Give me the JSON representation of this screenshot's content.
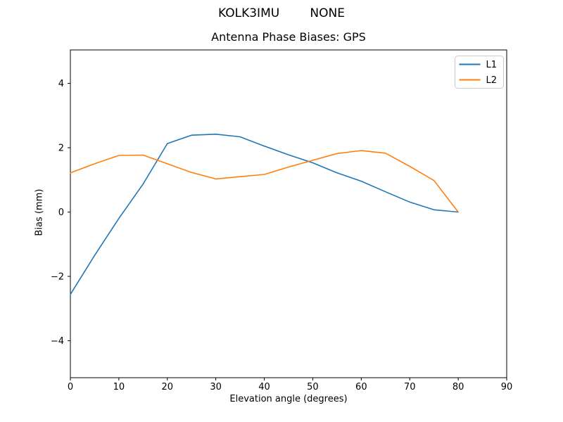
{
  "suptitle": "KOLK3IMU        NONE",
  "chart_data": {
    "type": "line",
    "title": "Antenna Phase Biases: GPS",
    "suptitle": "KOLK3IMU        NONE",
    "xlabel": "Elevation angle (degrees)",
    "ylabel": "Bias (mm)",
    "xlim": [
      0,
      90
    ],
    "ylim": [
      -5.15,
      5.04
    ],
    "grid": false,
    "xticks": [
      0,
      10,
      20,
      30,
      40,
      50,
      60,
      70,
      80,
      90
    ],
    "xtick_labels": [
      "0",
      "10",
      "20",
      "30",
      "40",
      "50",
      "60",
      "70",
      "80",
      "90"
    ],
    "yticks": [
      -4,
      -2,
      0,
      2,
      4
    ],
    "ytick_labels": [
      "−4",
      "−2",
      "0",
      "2",
      "4"
    ],
    "x": [
      0,
      5,
      10,
      15,
      20,
      25,
      30,
      35,
      40,
      45,
      50,
      55,
      60,
      65,
      70,
      75,
      80
    ],
    "series": [
      {
        "name": "L1",
        "color": "#1f77b4",
        "values": [
          -2.56,
          -1.35,
          -0.2,
          0.87,
          2.13,
          2.39,
          2.42,
          2.34,
          2.05,
          1.78,
          1.53,
          1.22,
          0.96,
          0.63,
          0.31,
          0.07,
          0.0
        ]
      },
      {
        "name": "L2",
        "color": "#ff7f0e",
        "values": [
          1.22,
          1.5,
          1.76,
          1.77,
          1.5,
          1.23,
          1.03,
          1.1,
          1.17,
          1.4,
          1.61,
          1.82,
          1.91,
          1.83,
          1.42,
          0.98,
          0.0
        ]
      }
    ],
    "legend": {
      "position": "upper right",
      "entries": [
        "L1",
        "L2"
      ],
      "border_color": "#cccccc"
    },
    "axis_color": "#000000",
    "background": "#ffffff"
  }
}
